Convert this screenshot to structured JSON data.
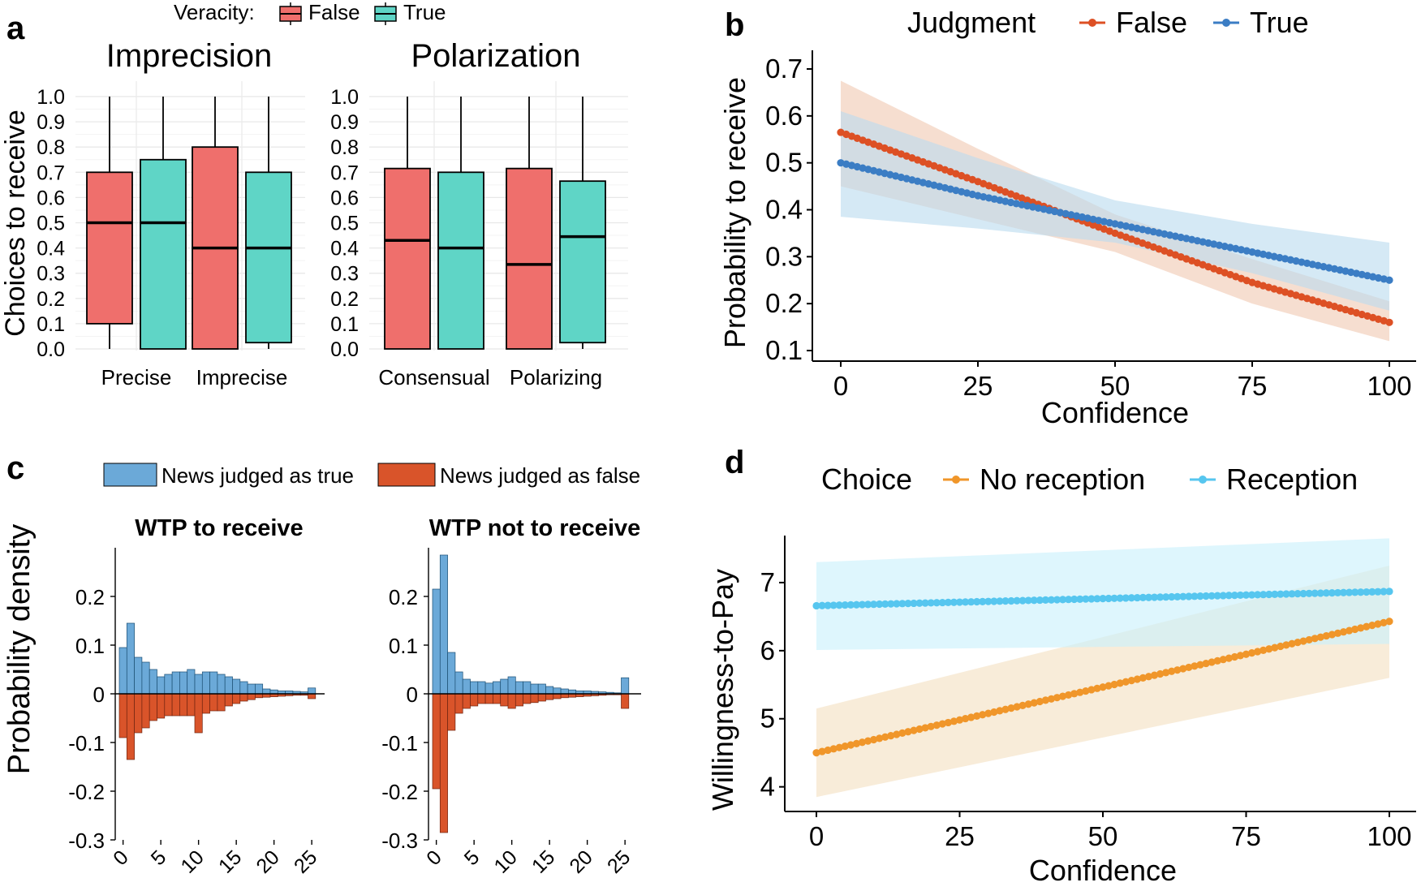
{
  "chart_data": [
    {
      "panel": "a",
      "type": "box",
      "legend": {
        "title": "Veracity:",
        "entries": [
          {
            "label": "False",
            "color": "#ef6f6c"
          },
          {
            "label": "True",
            "color": "#5fd5c6"
          }
        ],
        "placement": "top"
      },
      "ylabel": "Choices to receive",
      "ylim": [
        0.0,
        1.0
      ],
      "yticks": [
        "0.0",
        "0.1",
        "0.2",
        "0.3",
        "0.4",
        "0.5",
        "0.6",
        "0.7",
        "0.8",
        "0.9",
        "1.0"
      ],
      "facets": [
        {
          "title": "Imprecision",
          "categories": [
            "Precise",
            "Imprecise"
          ],
          "boxes": [
            {
              "category": "Precise",
              "veracity": "False",
              "min": 0.0,
              "q1": 0.1,
              "median": 0.5,
              "q3": 0.7,
              "max": 1.0
            },
            {
              "category": "Precise",
              "veracity": "True",
              "min": 0.0,
              "q1": 0.0,
              "median": 0.5,
              "q3": 0.75,
              "max": 1.0
            },
            {
              "category": "Imprecise",
              "veracity": "False",
              "min": 0.0,
              "q1": 0.0,
              "median": 0.4,
              "q3": 0.8,
              "max": 1.0
            },
            {
              "category": "Imprecise",
              "veracity": "True",
              "min": 0.0,
              "q1": 0.025,
              "median": 0.4,
              "q3": 0.7,
              "max": 1.0
            }
          ]
        },
        {
          "title": "Polarization",
          "categories": [
            "Consensual",
            "Polarizing"
          ],
          "boxes": [
            {
              "category": "Consensual",
              "veracity": "False",
              "min": 0.0,
              "q1": 0.0,
              "median": 0.43,
              "q3": 0.715,
              "max": 1.0
            },
            {
              "category": "Consensual",
              "veracity": "True",
              "min": 0.0,
              "q1": 0.0,
              "median": 0.4,
              "q3": 0.7,
              "max": 1.0
            },
            {
              "category": "Polarizing",
              "veracity": "False",
              "min": 0.0,
              "q1": 0.0,
              "median": 0.335,
              "q3": 0.715,
              "max": 1.0
            },
            {
              "category": "Polarizing",
              "veracity": "True",
              "min": 0.0,
              "q1": 0.025,
              "median": 0.445,
              "q3": 0.665,
              "max": 1.0
            }
          ]
        }
      ]
    },
    {
      "panel": "b",
      "type": "line",
      "legend": {
        "title": "Judgment",
        "entries": [
          {
            "label": "False",
            "color": "#dd5024"
          },
          {
            "label": "True",
            "color": "#3b7dc4"
          }
        ],
        "placement": "top"
      },
      "xlabel": "Confidence",
      "ylabel": "Probability to receive",
      "xlim": [
        0,
        100
      ],
      "ylim": [
        0.1,
        0.7
      ],
      "xticks": [
        "0",
        "25",
        "50",
        "75",
        "100"
      ],
      "yticks": [
        "0.1",
        "0.2",
        "0.3",
        "0.4",
        "0.5",
        "0.6",
        "0.7"
      ],
      "series": [
        {
          "name": "False",
          "color": "#dd5024",
          "band_color": "#f0c9b3",
          "x": [
            0,
            25,
            50,
            75,
            100
          ],
          "y": [
            0.565,
            0.46,
            0.35,
            0.245,
            0.16
          ],
          "lower": [
            0.45,
            0.38,
            0.31,
            0.2,
            0.12
          ],
          "upper": [
            0.675,
            0.53,
            0.39,
            0.295,
            0.205
          ]
        },
        {
          "name": "True",
          "color": "#3b7dc4",
          "band_color": "#bcdcef",
          "x": [
            0,
            25,
            50,
            75,
            100
          ],
          "y": [
            0.5,
            0.43,
            0.37,
            0.31,
            0.25
          ],
          "lower": [
            0.385,
            0.36,
            0.33,
            0.265,
            0.185
          ],
          "upper": [
            0.61,
            0.51,
            0.42,
            0.37,
            0.33
          ]
        }
      ]
    },
    {
      "panel": "c",
      "type": "bar",
      "legend": {
        "entries": [
          {
            "label": "News judged as true",
            "color": "#6ba9d8"
          },
          {
            "label": "News judged as false",
            "color": "#d9542a"
          }
        ],
        "placement": "top"
      },
      "ylabel": "Probability density",
      "ylim": [
        -0.3,
        0.3
      ],
      "yticks": [
        "0.2",
        "0.1",
        "0",
        "-0.1",
        "-0.2",
        "-0.3"
      ],
      "xticks": [
        "0",
        "5",
        "10",
        "15",
        "20",
        "25"
      ],
      "facets": [
        {
          "title": "WTP to receive",
          "x": [
            0,
            1,
            2,
            3,
            4,
            5,
            6,
            7,
            8,
            9,
            10,
            11,
            12,
            13,
            14,
            15,
            16,
            17,
            18,
            19,
            20,
            21,
            22,
            23,
            24,
            25
          ],
          "true_values": [
            0.095,
            0.145,
            0.075,
            0.065,
            0.05,
            0.035,
            0.04,
            0.045,
            0.045,
            0.05,
            0.04,
            0.045,
            0.045,
            0.04,
            0.035,
            0.03,
            0.025,
            0.02,
            0.02,
            0.01,
            0.008,
            0.006,
            0.006,
            0.005,
            0.004,
            0.012
          ],
          "false_values": [
            -0.09,
            -0.135,
            -0.08,
            -0.07,
            -0.055,
            -0.05,
            -0.045,
            -0.045,
            -0.045,
            -0.045,
            -0.08,
            -0.04,
            -0.035,
            -0.035,
            -0.025,
            -0.02,
            -0.015,
            -0.012,
            -0.008,
            -0.007,
            -0.006,
            -0.005,
            -0.004,
            -0.003,
            -0.003,
            -0.01
          ]
        },
        {
          "title": "WTP not to receive",
          "x": [
            0,
            1,
            2,
            3,
            4,
            5,
            6,
            7,
            8,
            9,
            10,
            11,
            12,
            13,
            14,
            15,
            16,
            17,
            18,
            19,
            20,
            21,
            22,
            23,
            24,
            25
          ],
          "true_values": [
            0.215,
            0.285,
            0.085,
            0.045,
            0.03,
            0.025,
            0.025,
            0.022,
            0.025,
            0.03,
            0.035,
            0.025,
            0.025,
            0.02,
            0.02,
            0.015,
            0.012,
            0.01,
            0.008,
            0.006,
            0.006,
            0.005,
            0.004,
            0.003,
            0.002,
            0.033
          ],
          "false_values": [
            -0.195,
            -0.285,
            -0.075,
            -0.04,
            -0.03,
            -0.025,
            -0.02,
            -0.02,
            -0.02,
            -0.025,
            -0.03,
            -0.025,
            -0.02,
            -0.018,
            -0.015,
            -0.012,
            -0.01,
            -0.008,
            -0.007,
            -0.006,
            -0.005,
            -0.004,
            -0.003,
            -0.002,
            -0.002,
            -0.03
          ]
        }
      ]
    },
    {
      "panel": "d",
      "type": "line",
      "legend": {
        "title": "Choice",
        "entries": [
          {
            "label": "No reception",
            "color": "#f0962a"
          },
          {
            "label": "Reception",
            "color": "#56c6ef"
          }
        ],
        "placement": "top"
      },
      "xlabel": "Confidence",
      "ylabel": "Willingness-to-Pay",
      "xlim": [
        0,
        100
      ],
      "ylim": [
        3.65,
        7.75
      ],
      "xticks": [
        "0",
        "25",
        "50",
        "75",
        "100"
      ],
      "yticks": [
        "4",
        "5",
        "6",
        "7"
      ],
      "series": [
        {
          "name": "No reception",
          "color": "#f0962a",
          "band_color": "#f3e0c2",
          "x": [
            0,
            100
          ],
          "y": [
            4.5,
            6.43
          ],
          "lower": [
            3.85,
            5.6
          ],
          "upper": [
            5.15,
            7.25
          ]
        },
        {
          "name": "Reception",
          "color": "#56c6ef",
          "band_color": "#c9f0fb",
          "x": [
            0,
            100
          ],
          "y": [
            6.66,
            6.87
          ],
          "lower": [
            6.01,
            6.1
          ],
          "upper": [
            7.3,
            7.65
          ]
        }
      ]
    }
  ]
}
